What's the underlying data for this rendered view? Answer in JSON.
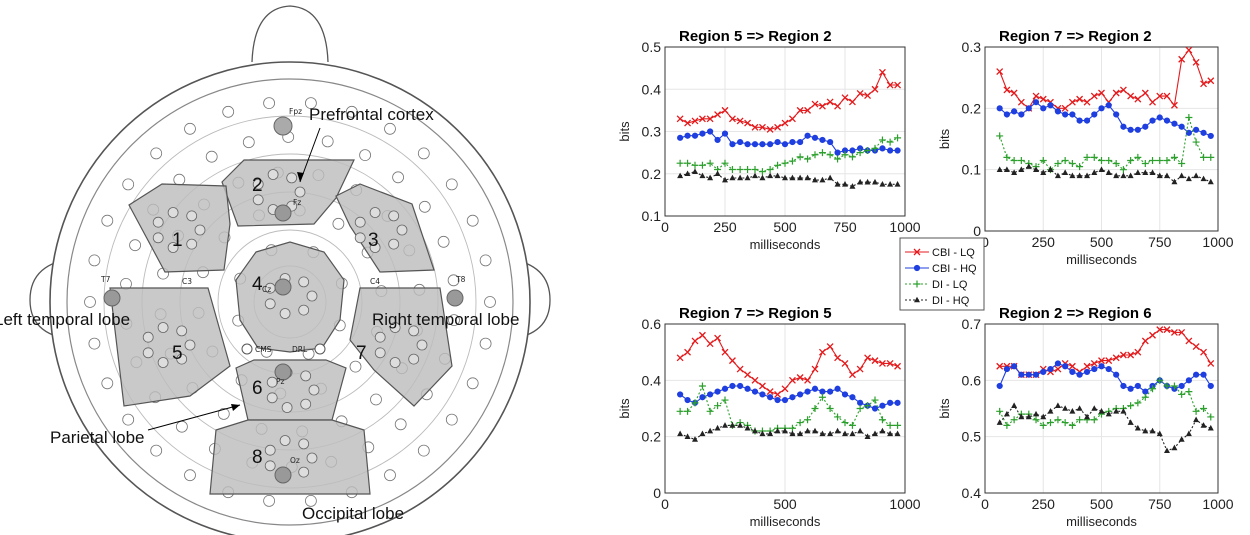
{
  "brain_map": {
    "regions": [
      {
        "num": "1"
      },
      {
        "num": "2"
      },
      {
        "num": "3"
      },
      {
        "num": "4"
      },
      {
        "num": "5"
      },
      {
        "num": "6"
      },
      {
        "num": "7"
      },
      {
        "num": "8"
      }
    ],
    "labels": {
      "prefrontal": "Prefrontal cortex",
      "left_temporal": "Left temporal lobe",
      "right_temporal": "Right temporal lobe",
      "parietal": "Parietal lobe",
      "occipital": "Occipital lobe"
    },
    "electrodes": {
      "fpz": "Fpz",
      "fz": "Fz",
      "cz": "Cz",
      "pz": "Pz",
      "oz": "Oz",
      "c3": "C3",
      "c4": "C4",
      "t7": "T7",
      "t8": "T8",
      "cms": "CMS",
      "drl": "DRL"
    }
  },
  "chart_data": [
    {
      "type": "line",
      "title": "Region 5 => Region 2",
      "xlabel": "milliseconds",
      "ylabel": "bits",
      "xlim": [
        0,
        1000
      ],
      "ylim": [
        0.1,
        0.5
      ],
      "xticks": [
        "0",
        "250",
        "500",
        "750",
        "1000"
      ],
      "yticks": [
        "0.1",
        "0.2",
        "0.3",
        "0.4",
        "0.5"
      ],
      "x": [
        63,
        94,
        125,
        156,
        188,
        219,
        250,
        281,
        313,
        344,
        375,
        406,
        438,
        469,
        500,
        531,
        563,
        594,
        625,
        656,
        688,
        719,
        750,
        781,
        813,
        844,
        875,
        906,
        938,
        969
      ],
      "series": [
        {
          "name": "CBI - LQ",
          "values": [
            0.33,
            0.32,
            0.325,
            0.33,
            0.33,
            0.34,
            0.35,
            0.33,
            0.325,
            0.32,
            0.31,
            0.31,
            0.305,
            0.31,
            0.32,
            0.33,
            0.35,
            0.35,
            0.365,
            0.36,
            0.37,
            0.36,
            0.38,
            0.37,
            0.39,
            0.385,
            0.4,
            0.44,
            0.41,
            0.41
          ]
        },
        {
          "name": "CBI - HQ",
          "values": [
            0.285,
            0.29,
            0.29,
            0.295,
            0.3,
            0.28,
            0.295,
            0.27,
            0.275,
            0.27,
            0.27,
            0.27,
            0.27,
            0.275,
            0.27,
            0.275,
            0.275,
            0.29,
            0.285,
            0.28,
            0.275,
            0.25,
            0.255,
            0.255,
            0.26,
            0.255,
            0.255,
            0.26,
            0.255,
            0.255
          ]
        },
        {
          "name": "DI - LQ",
          "values": [
            0.225,
            0.225,
            0.22,
            0.22,
            0.225,
            0.21,
            0.225,
            0.21,
            0.21,
            0.21,
            0.21,
            0.205,
            0.21,
            0.22,
            0.225,
            0.23,
            0.24,
            0.235,
            0.245,
            0.25,
            0.245,
            0.235,
            0.245,
            0.24,
            0.25,
            0.255,
            0.26,
            0.28,
            0.275,
            0.285
          ]
        },
        {
          "name": "DI - HQ",
          "values": [
            0.195,
            0.2,
            0.205,
            0.195,
            0.19,
            0.2,
            0.185,
            0.19,
            0.19,
            0.19,
            0.195,
            0.19,
            0.195,
            0.195,
            0.19,
            0.19,
            0.19,
            0.19,
            0.185,
            0.185,
            0.19,
            0.175,
            0.175,
            0.17,
            0.18,
            0.18,
            0.18,
            0.175,
            0.175,
            0.175
          ]
        }
      ]
    },
    {
      "type": "line",
      "title": "Region 7 => Region 2",
      "xlabel": "milliseconds",
      "ylabel": "bits",
      "xlim": [
        0,
        1000
      ],
      "ylim": [
        0,
        0.3
      ],
      "xticks": [
        "0",
        "250",
        "500",
        "750",
        "1000"
      ],
      "yticks": [
        "0",
        "0.1",
        "0.2",
        "0.3"
      ],
      "x": [
        63,
        94,
        125,
        156,
        188,
        219,
        250,
        281,
        313,
        344,
        375,
        406,
        438,
        469,
        500,
        531,
        563,
        594,
        625,
        656,
        688,
        719,
        750,
        781,
        813,
        844,
        875,
        906,
        938,
        969
      ],
      "series": [
        {
          "name": "CBI - LQ",
          "values": [
            0.26,
            0.23,
            0.225,
            0.21,
            0.2,
            0.22,
            0.215,
            0.21,
            0.2,
            0.2,
            0.21,
            0.215,
            0.21,
            0.22,
            0.225,
            0.21,
            0.225,
            0.23,
            0.22,
            0.215,
            0.225,
            0.21,
            0.22,
            0.22,
            0.205,
            0.28,
            0.295,
            0.275,
            0.24,
            0.245
          ]
        },
        {
          "name": "CBI - HQ",
          "values": [
            0.2,
            0.19,
            0.195,
            0.19,
            0.2,
            0.21,
            0.2,
            0.205,
            0.195,
            0.19,
            0.19,
            0.18,
            0.18,
            0.19,
            0.2,
            0.205,
            0.19,
            0.17,
            0.165,
            0.165,
            0.17,
            0.18,
            0.185,
            0.18,
            0.175,
            0.17,
            0.16,
            0.165,
            0.16,
            0.155
          ]
        },
        {
          "name": "DI - LQ",
          "values": [
            0.155,
            0.12,
            0.115,
            0.115,
            0.11,
            0.105,
            0.115,
            0.1,
            0.11,
            0.115,
            0.11,
            0.105,
            0.12,
            0.12,
            0.115,
            0.115,
            0.11,
            0.1,
            0.115,
            0.12,
            0.11,
            0.115,
            0.115,
            0.115,
            0.12,
            0.11,
            0.185,
            0.145,
            0.12,
            0.12
          ]
        },
        {
          "name": "DI - HQ",
          "values": [
            0.1,
            0.1,
            0.095,
            0.1,
            0.105,
            0.1,
            0.095,
            0.1,
            0.09,
            0.095,
            0.09,
            0.09,
            0.09,
            0.095,
            0.1,
            0.095,
            0.09,
            0.09,
            0.09,
            0.095,
            0.095,
            0.095,
            0.09,
            0.09,
            0.08,
            0.09,
            0.085,
            0.09,
            0.085,
            0.08
          ]
        }
      ]
    },
    {
      "type": "line",
      "title": "Region 7 => Region 5",
      "xlabel": "milliseconds",
      "ylabel": "bits",
      "xlim": [
        0,
        1000
      ],
      "ylim": [
        0,
        0.6
      ],
      "xticks": [
        "0",
        "500",
        "1000"
      ],
      "yticks": [
        "0",
        "0.2",
        "0.4",
        "0.6"
      ],
      "x": [
        63,
        94,
        125,
        156,
        188,
        219,
        250,
        281,
        313,
        344,
        375,
        406,
        438,
        469,
        500,
        531,
        563,
        594,
        625,
        656,
        688,
        719,
        750,
        781,
        813,
        844,
        875,
        906,
        938,
        969
      ],
      "series": [
        {
          "name": "CBI - LQ",
          "values": [
            0.48,
            0.5,
            0.54,
            0.56,
            0.53,
            0.55,
            0.5,
            0.47,
            0.44,
            0.42,
            0.4,
            0.38,
            0.36,
            0.35,
            0.37,
            0.4,
            0.41,
            0.4,
            0.44,
            0.5,
            0.52,
            0.48,
            0.46,
            0.42,
            0.44,
            0.48,
            0.47,
            0.46,
            0.46,
            0.45
          ]
        },
        {
          "name": "CBI - HQ",
          "values": [
            0.35,
            0.33,
            0.32,
            0.34,
            0.35,
            0.36,
            0.37,
            0.38,
            0.38,
            0.37,
            0.36,
            0.35,
            0.34,
            0.33,
            0.33,
            0.34,
            0.35,
            0.36,
            0.37,
            0.36,
            0.36,
            0.37,
            0.35,
            0.34,
            0.32,
            0.31,
            0.3,
            0.31,
            0.32,
            0.32
          ]
        },
        {
          "name": "DI - LQ",
          "values": [
            0.29,
            0.29,
            0.32,
            0.38,
            0.29,
            0.31,
            0.33,
            0.24,
            0.25,
            0.24,
            0.22,
            0.22,
            0.22,
            0.23,
            0.23,
            0.23,
            0.25,
            0.26,
            0.3,
            0.34,
            0.3,
            0.27,
            0.25,
            0.24,
            0.3,
            0.31,
            0.33,
            0.26,
            0.24,
            0.24
          ]
        },
        {
          "name": "DI - HQ",
          "values": [
            0.21,
            0.2,
            0.19,
            0.21,
            0.22,
            0.23,
            0.24,
            0.24,
            0.24,
            0.23,
            0.22,
            0.21,
            0.21,
            0.22,
            0.22,
            0.21,
            0.21,
            0.22,
            0.22,
            0.21,
            0.21,
            0.22,
            0.21,
            0.21,
            0.22,
            0.2,
            0.21,
            0.22,
            0.21,
            0.21
          ]
        }
      ]
    },
    {
      "type": "line",
      "title": "Region 2 => Region 6",
      "xlabel": "milliseconds",
      "ylabel": "bits",
      "xlim": [
        0,
        1000
      ],
      "ylim": [
        0.4,
        0.7
      ],
      "xticks": [
        "0",
        "250",
        "500",
        "750",
        "1000"
      ],
      "yticks": [
        "0.4",
        "0.5",
        "0.6",
        "0.7"
      ],
      "x": [
        63,
        94,
        125,
        156,
        188,
        219,
        250,
        281,
        313,
        344,
        375,
        406,
        438,
        469,
        500,
        531,
        563,
        594,
        625,
        656,
        688,
        719,
        750,
        781,
        813,
        844,
        875,
        906,
        938,
        969
      ],
      "series": [
        {
          "name": "CBI - LQ",
          "values": [
            0.625,
            0.625,
            0.625,
            0.61,
            0.61,
            0.61,
            0.62,
            0.615,
            0.62,
            0.63,
            0.625,
            0.615,
            0.625,
            0.63,
            0.635,
            0.635,
            0.64,
            0.645,
            0.645,
            0.65,
            0.67,
            0.68,
            0.69,
            0.69,
            0.685,
            0.685,
            0.67,
            0.66,
            0.65,
            0.63
          ]
        },
        {
          "name": "CBI - HQ",
          "values": [
            0.59,
            0.62,
            0.625,
            0.61,
            0.61,
            0.61,
            0.615,
            0.62,
            0.63,
            0.625,
            0.615,
            0.61,
            0.615,
            0.62,
            0.625,
            0.62,
            0.61,
            0.59,
            0.585,
            0.59,
            0.58,
            0.59,
            0.6,
            0.59,
            0.585,
            0.59,
            0.6,
            0.61,
            0.61,
            0.59
          ]
        },
        {
          "name": "DI - LQ",
          "values": [
            0.545,
            0.52,
            0.53,
            0.54,
            0.54,
            0.53,
            0.52,
            0.525,
            0.53,
            0.525,
            0.52,
            0.53,
            0.53,
            0.53,
            0.54,
            0.545,
            0.55,
            0.55,
            0.555,
            0.56,
            0.57,
            0.585,
            0.6,
            0.59,
            0.59,
            0.575,
            0.58,
            0.545,
            0.55,
            0.535
          ]
        },
        {
          "name": "DI - HQ",
          "values": [
            0.525,
            0.54,
            0.555,
            0.535,
            0.535,
            0.54,
            0.535,
            0.545,
            0.555,
            0.55,
            0.545,
            0.55,
            0.535,
            0.55,
            0.545,
            0.54,
            0.545,
            0.545,
            0.525,
            0.515,
            0.51,
            0.51,
            0.505,
            0.475,
            0.48,
            0.495,
            0.505,
            0.53,
            0.52,
            0.515
          ]
        }
      ]
    }
  ],
  "legend": {
    "entries": [
      {
        "label": "CBI - LQ",
        "color": "#e41a1c",
        "marker": "x"
      },
      {
        "label": "CBI - HQ",
        "color": "#1f3fe0",
        "marker": "o"
      },
      {
        "label": "DI - LQ",
        "color": "#2ca02c",
        "marker": "+"
      },
      {
        "label": "DI - HQ",
        "color": "#222222",
        "marker": "^"
      }
    ]
  }
}
